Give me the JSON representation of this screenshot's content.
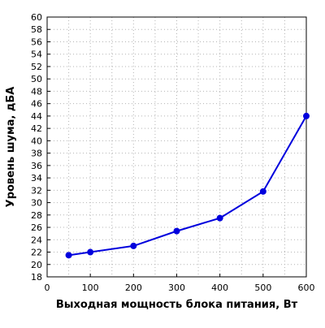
{
  "chart_data": {
    "type": "line",
    "title": "",
    "xlabel": "Выходная мощность блока питания, Вт",
    "ylabel": "Уровень шума, дБА",
    "xlim": [
      0,
      600
    ],
    "ylim": [
      18,
      60
    ],
    "x_ticks": [
      0,
      100,
      200,
      300,
      400,
      500,
      600
    ],
    "y_ticks": [
      18,
      20,
      22,
      24,
      26,
      28,
      30,
      32,
      34,
      36,
      38,
      40,
      42,
      44,
      46,
      48,
      50,
      52,
      54,
      56,
      58,
      60
    ],
    "grid": true,
    "legend": "none",
    "series": [
      {
        "color": "#0000dd",
        "x": [
          50,
          100,
          200,
          300,
          400,
          500,
          600
        ],
        "y": [
          21.5,
          22.0,
          23.0,
          25.4,
          27.5,
          31.8,
          44.0
        ]
      }
    ]
  }
}
